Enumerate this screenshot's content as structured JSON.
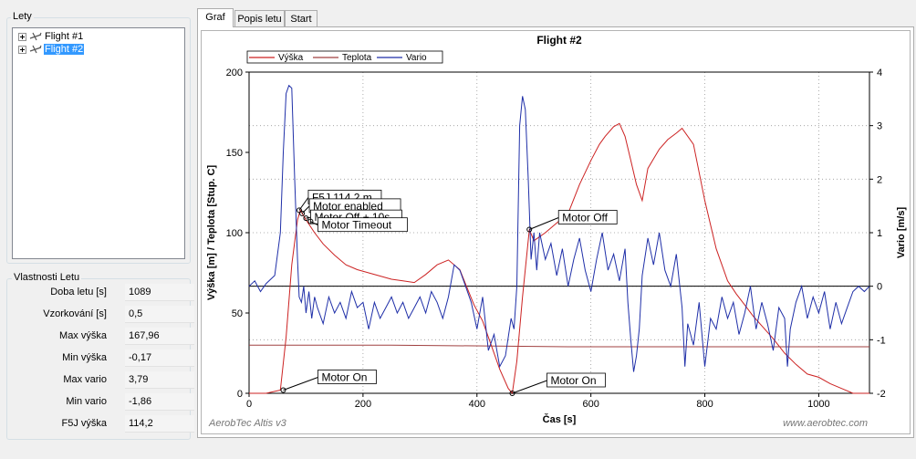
{
  "flights_group": {
    "title": "Lety",
    "items": [
      {
        "label": "Flight #1",
        "selected": false
      },
      {
        "label": "Flight #2",
        "selected": true
      }
    ]
  },
  "properties": {
    "title": "Vlastnosti Letu",
    "rows": [
      {
        "label": "Doba letu [s]",
        "value": "1089"
      },
      {
        "label": "Vzorkování [s]",
        "value": "0,5"
      },
      {
        "label": "Max výška",
        "value": "167,96"
      },
      {
        "label": "Min výška",
        "value": "-0,17"
      },
      {
        "label": "Max vario",
        "value": "3,79"
      },
      {
        "label": "Min vario",
        "value": "-1,86"
      },
      {
        "label": "F5J výška",
        "value": "114,2"
      }
    ]
  },
  "tabs": [
    {
      "label": "Graf",
      "active": true
    },
    {
      "label": "Popis letu",
      "active": false
    },
    {
      "label": "Start",
      "active": false
    }
  ],
  "chart_data": {
    "type": "line",
    "title": "Flight #2",
    "xlabel": "Čas [s]",
    "ylabel": "Výška [m] / Teplota [Stup. C]",
    "y2label": "Vario [m/s]",
    "xlim": [
      0,
      1089
    ],
    "ylim": [
      0,
      200
    ],
    "y2lim": [
      -2,
      4
    ],
    "xticks": [
      "0",
      "200",
      "400",
      "600",
      "800",
      "1000"
    ],
    "yticks": [
      "0",
      "50",
      "100",
      "150",
      "200"
    ],
    "y2ticks": [
      "-2",
      "-1",
      "0",
      "1",
      "2",
      "3",
      "4"
    ],
    "grid": true,
    "legend_position": "top-left",
    "watermark_left": "AerobTec Altis v3",
    "watermark_right": "www.aerobtec.com",
    "colors": {
      "vyska": "#cc2222",
      "teplota": "#a04040",
      "vario": "#1f2fa8"
    },
    "series": [
      {
        "name": "Výška",
        "axis": "left",
        "color": "#cc2222",
        "x": [
          0,
          30,
          55,
          65,
          75,
          85,
          90,
          100,
          115,
          130,
          150,
          170,
          190,
          210,
          230,
          250,
          270,
          290,
          310,
          330,
          350,
          370,
          380,
          395,
          410,
          425,
          440,
          455,
          462,
          470,
          480,
          492,
          500,
          520,
          540,
          560,
          580,
          600,
          615,
          625,
          640,
          650,
          660,
          670,
          680,
          690,
          700,
          720,
          735,
          750,
          760,
          780,
          800,
          820,
          840,
          855,
          870,
          885,
          900,
          920,
          940,
          960,
          980,
          1000,
          1020,
          1040,
          1060,
          1070,
          1089
        ],
        "y": [
          0,
          0,
          2,
          35,
          80,
          108,
          114,
          108,
          100,
          93,
          86,
          80,
          77,
          75,
          73,
          71,
          70,
          69,
          74,
          80,
          83,
          77,
          68,
          55,
          45,
          30,
          15,
          3,
          0,
          20,
          60,
          102,
          95,
          100,
          106,
          112,
          130,
          145,
          155,
          160,
          166,
          168,
          160,
          145,
          130,
          120,
          140,
          152,
          158,
          162,
          165,
          155,
          120,
          90,
          70,
          62,
          55,
          48,
          42,
          34,
          25,
          18,
          12,
          10,
          6,
          3,
          0,
          0,
          0
        ]
      },
      {
        "name": "Teplota",
        "axis": "left",
        "color": "#a04040",
        "x": [
          0,
          250,
          560,
          1089
        ],
        "y": [
          30,
          30,
          29,
          29
        ]
      },
      {
        "name": "Vario",
        "axis": "right",
        "color": "#1f2fa8",
        "x": [
          0,
          10,
          20,
          30,
          45,
          55,
          60,
          65,
          70,
          75,
          80,
          85,
          88,
          92,
          96,
          100,
          105,
          110,
          115,
          120,
          130,
          140,
          150,
          160,
          170,
          180,
          190,
          200,
          210,
          220,
          230,
          240,
          250,
          260,
          270,
          280,
          290,
          300,
          310,
          320,
          330,
          340,
          350,
          360,
          370,
          380,
          390,
          400,
          410,
          420,
          430,
          440,
          450,
          460,
          465,
          470,
          475,
          480,
          485,
          490,
          495,
          500,
          505,
          510,
          520,
          530,
          540,
          550,
          560,
          570,
          580,
          590,
          600,
          610,
          620,
          630,
          640,
          650,
          660,
          665,
          670,
          675,
          680,
          685,
          690,
          700,
          710,
          720,
          730,
          740,
          750,
          760,
          765,
          770,
          780,
          790,
          800,
          810,
          820,
          830,
          840,
          850,
          860,
          870,
          880,
          890,
          900,
          910,
          920,
          930,
          940,
          945,
          950,
          960,
          970,
          980,
          990,
          1000,
          1010,
          1020,
          1030,
          1040,
          1050,
          1060,
          1070,
          1080,
          1089
        ],
        "y": [
          0,
          0.1,
          -0.1,
          0.05,
          0.2,
          1.0,
          2.5,
          3.6,
          3.75,
          3.7,
          2.0,
          0.5,
          -0.2,
          -0.3,
          0.0,
          -0.5,
          -0.1,
          -0.6,
          -0.2,
          -0.4,
          -0.7,
          -0.2,
          -0.5,
          -0.3,
          -0.6,
          -0.1,
          -0.4,
          -0.3,
          -0.8,
          -0.3,
          -0.6,
          -0.4,
          -0.2,
          -0.5,
          -0.3,
          -0.6,
          -0.4,
          -0.2,
          -0.5,
          -0.1,
          -0.3,
          -0.6,
          -0.2,
          0.4,
          0.3,
          0.0,
          -0.3,
          -0.8,
          -0.2,
          -1.2,
          -0.9,
          -1.5,
          -1.3,
          -0.6,
          -0.8,
          0.0,
          3.0,
          3.55,
          3.3,
          2.0,
          0.5,
          1.0,
          0.3,
          1.0,
          0.5,
          0.8,
          0.2,
          0.7,
          0.0,
          0.5,
          0.9,
          0.3,
          -0.1,
          0.5,
          1.0,
          0.3,
          0.6,
          0.1,
          0.7,
          -0.3,
          -1.0,
          -1.6,
          -1.3,
          -0.8,
          0.2,
          0.9,
          0.4,
          1.0,
          0.3,
          0.0,
          0.6,
          -0.4,
          -1.5,
          -0.7,
          -1.1,
          -0.3,
          -1.5,
          -0.6,
          -0.8,
          -0.2,
          -0.6,
          -0.3,
          -0.9,
          -0.5,
          0.0,
          -0.8,
          -0.3,
          -0.7,
          -1.2,
          -0.4,
          -0.6,
          -1.5,
          -0.8,
          -0.3,
          0.0,
          -0.6,
          -0.2,
          -0.5,
          -0.1,
          -0.8,
          -0.3,
          -0.7,
          -0.4,
          -0.1,
          0.0,
          -0.1,
          0.0
        ]
      }
    ],
    "annotations": [
      {
        "text": "Motor On",
        "x": 60,
        "y": 2
      },
      {
        "text": "F5J 114,2 m",
        "x": 88,
        "y": 114
      },
      {
        "text": "Motor enabled",
        "x": 93,
        "y": 112
      },
      {
        "text": "Motor Off + 10s",
        "x": 100,
        "y": 109
      },
      {
        "text": "Motor Timeout",
        "x": 108,
        "y": 107
      },
      {
        "text": "Motor On",
        "x": 462,
        "y": 0
      },
      {
        "text": "Motor Off",
        "x": 492,
        "y": 102
      }
    ]
  }
}
